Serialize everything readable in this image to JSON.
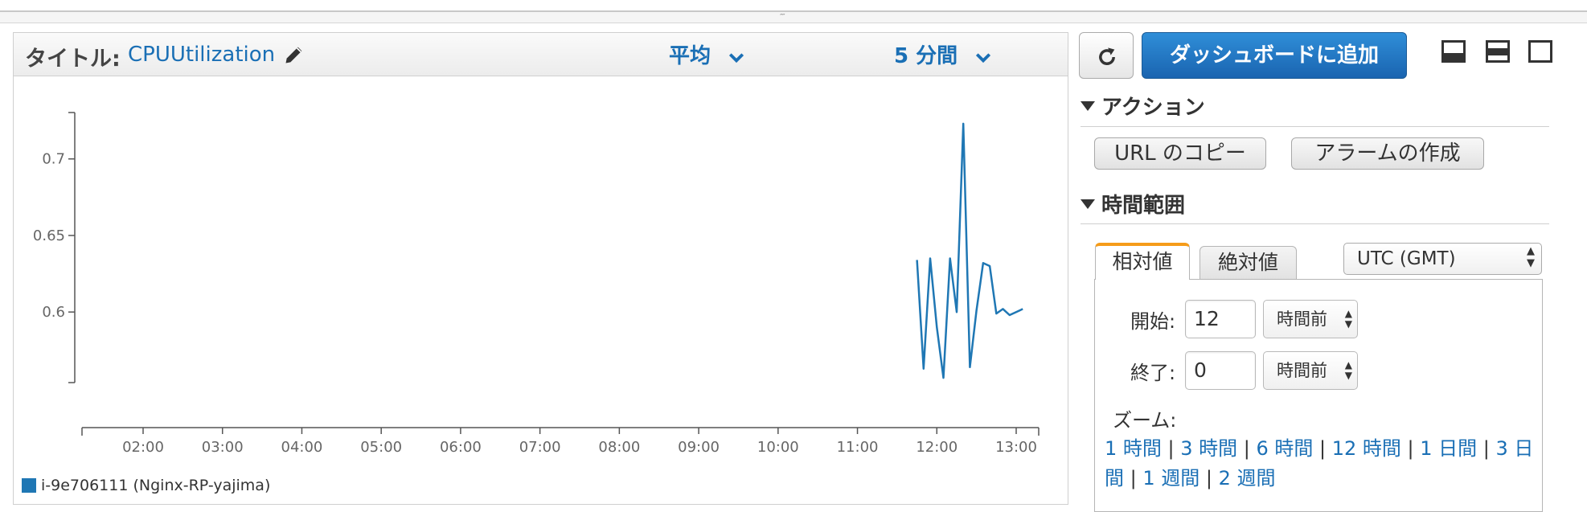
{
  "graph": {
    "title_label": "タイトル:",
    "title_value": "CPUUtilization",
    "statistic": "平均",
    "period": "5 分間",
    "legend": "i-9e706111 (Nginx-RP-yajima)"
  },
  "toolbar": {
    "add_to_dashboard": "ダッシュボードに追加"
  },
  "actions": {
    "header": "アクション",
    "copy_url": "URL のコピー",
    "create_alarm": "アラームの作成"
  },
  "time_range": {
    "header": "時間範囲",
    "tab_relative": "相対値",
    "tab_absolute": "絶対値",
    "timezone": "UTC (GMT)",
    "start_label": "開始:",
    "start_value": "12",
    "start_unit": "時間前",
    "end_label": "終了:",
    "end_value": "0",
    "end_unit": "時間前",
    "zoom_label": "ズーム:",
    "zoom_options": [
      "1 時間",
      "3 時間",
      "6 時間",
      "12 時間",
      "1 日間",
      "3 日間",
      "1 週間",
      "2 週間"
    ]
  },
  "chart_data": {
    "type": "line",
    "x_ticks": [
      "02:00",
      "03:00",
      "04:00",
      "05:00",
      "06:00",
      "07:00",
      "08:00",
      "09:00",
      "10:00",
      "11:00",
      "12:00",
      "13:00"
    ],
    "y_ticks": [
      0.6,
      0.65,
      0.7
    ],
    "ylim": [
      0.556,
      0.724
    ],
    "series": [
      {
        "name": "i-9e706111 (Nginx-RP-yajima)",
        "color": "#1f77b4",
        "x": [
          "11:45",
          "11:50",
          "11:55",
          "12:00",
          "12:05",
          "12:10",
          "12:15",
          "12:20",
          "12:25",
          "12:30",
          "12:35",
          "12:40",
          "12:45",
          "12:50",
          "12:55",
          "13:00",
          "13:05"
        ],
        "y": [
          0.634,
          0.563,
          0.635,
          0.59,
          0.557,
          0.635,
          0.6,
          0.723,
          0.564,
          0.601,
          0.632,
          0.63,
          0.599,
          0.602,
          0.598,
          0.6,
          0.602
        ]
      }
    ]
  }
}
